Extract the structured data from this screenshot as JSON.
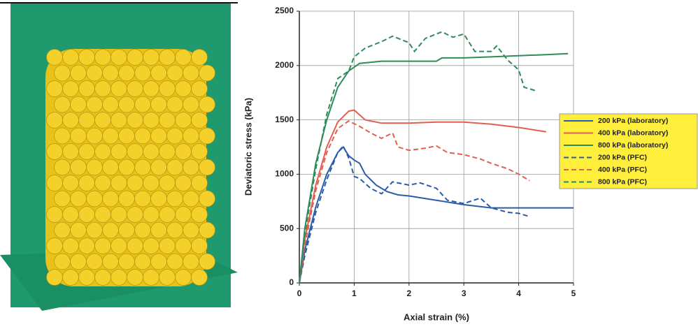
{
  "chart_data": {
    "type": "line",
    "x_label": "Axial strain (%)",
    "y_label": "Deviatoric stress (kPa)",
    "xlim": [
      0,
      5
    ],
    "xticks": [
      0,
      1,
      2,
      3,
      4,
      5
    ],
    "ylim": [
      0,
      2500
    ],
    "yticks": [
      0,
      500,
      1000,
      1500,
      2000,
      2500
    ],
    "grid": true,
    "legend": "right",
    "series": [
      {
        "name": "200 kPa (laboratory)",
        "color": "#2a5caa",
        "dashed": false,
        "x": [
          0,
          0.1,
          0.3,
          0.5,
          0.7,
          0.8,
          0.9,
          1.0,
          1.1,
          1.2,
          1.4,
          1.6,
          1.8,
          2.0,
          2.5,
          3.0,
          3.5,
          4.0,
          4.5,
          5.0
        ],
        "values": [
          0,
          300,
          700,
          1000,
          1200,
          1250,
          1170,
          1130,
          1100,
          1000,
          900,
          840,
          810,
          800,
          760,
          720,
          690,
          690,
          690,
          690
        ]
      },
      {
        "name": "400 kPa (laboratory)",
        "color": "#e0604f",
        "dashed": false,
        "x": [
          0,
          0.1,
          0.3,
          0.5,
          0.7,
          0.9,
          1.0,
          1.2,
          1.5,
          2.0,
          2.5,
          3.0,
          3.5,
          4.0,
          4.5
        ],
        "values": [
          0,
          400,
          900,
          1250,
          1480,
          1580,
          1590,
          1500,
          1470,
          1470,
          1480,
          1480,
          1460,
          1430,
          1390
        ]
      },
      {
        "name": "800 kPa (laboratory)",
        "color": "#2e8b5a",
        "dashed": false,
        "x": [
          0,
          0.1,
          0.3,
          0.5,
          0.7,
          0.9,
          1.1,
          1.5,
          2.0,
          2.5,
          2.6,
          3.0,
          3.5,
          4.0,
          4.5,
          4.9
        ],
        "values": [
          0,
          500,
          1100,
          1500,
          1800,
          1950,
          2020,
          2040,
          2040,
          2040,
          2070,
          2070,
          2080,
          2090,
          2100,
          2110
        ]
      },
      {
        "name": "200 kPa (PFC)",
        "color": "#2a5caa",
        "dashed": true,
        "x": [
          0,
          0.1,
          0.3,
          0.5,
          0.7,
          0.8,
          0.9,
          1.0,
          1.1,
          1.3,
          1.5,
          1.7,
          2.0,
          2.2,
          2.5,
          2.7,
          3.0,
          3.3,
          3.5,
          3.8,
          4.0,
          4.2
        ],
        "values": [
          0,
          250,
          650,
          950,
          1200,
          1260,
          1150,
          980,
          960,
          870,
          820,
          930,
          900,
          920,
          870,
          760,
          730,
          780,
          690,
          650,
          640,
          610
        ]
      },
      {
        "name": "400 kPa (PFC)",
        "color": "#e0604f",
        "dashed": true,
        "x": [
          0,
          0.1,
          0.3,
          0.5,
          0.7,
          0.9,
          1.1,
          1.3,
          1.5,
          1.7,
          1.8,
          2.0,
          2.3,
          2.5,
          2.7,
          3.0,
          3.3,
          3.5,
          3.8,
          4.0,
          4.2
        ],
        "values": [
          0,
          350,
          850,
          1200,
          1420,
          1490,
          1440,
          1380,
          1330,
          1380,
          1250,
          1220,
          1240,
          1260,
          1200,
          1180,
          1140,
          1100,
          1050,
          1000,
          940
        ]
      },
      {
        "name": "800 kPa (PFC)",
        "color": "#2e8b5a",
        "dashed": true,
        "x": [
          0,
          0.1,
          0.3,
          0.5,
          0.7,
          0.9,
          1.0,
          1.2,
          1.5,
          1.7,
          2.0,
          2.1,
          2.3,
          2.6,
          2.8,
          3.0,
          3.2,
          3.5,
          3.6,
          3.8,
          4.0,
          4.1,
          4.3
        ],
        "values": [
          0,
          450,
          1050,
          1550,
          1880,
          1950,
          2080,
          2160,
          2220,
          2270,
          2210,
          2130,
          2250,
          2310,
          2260,
          2290,
          2130,
          2130,
          2180,
          2050,
          1960,
          1800,
          1770
        ]
      }
    ]
  }
}
